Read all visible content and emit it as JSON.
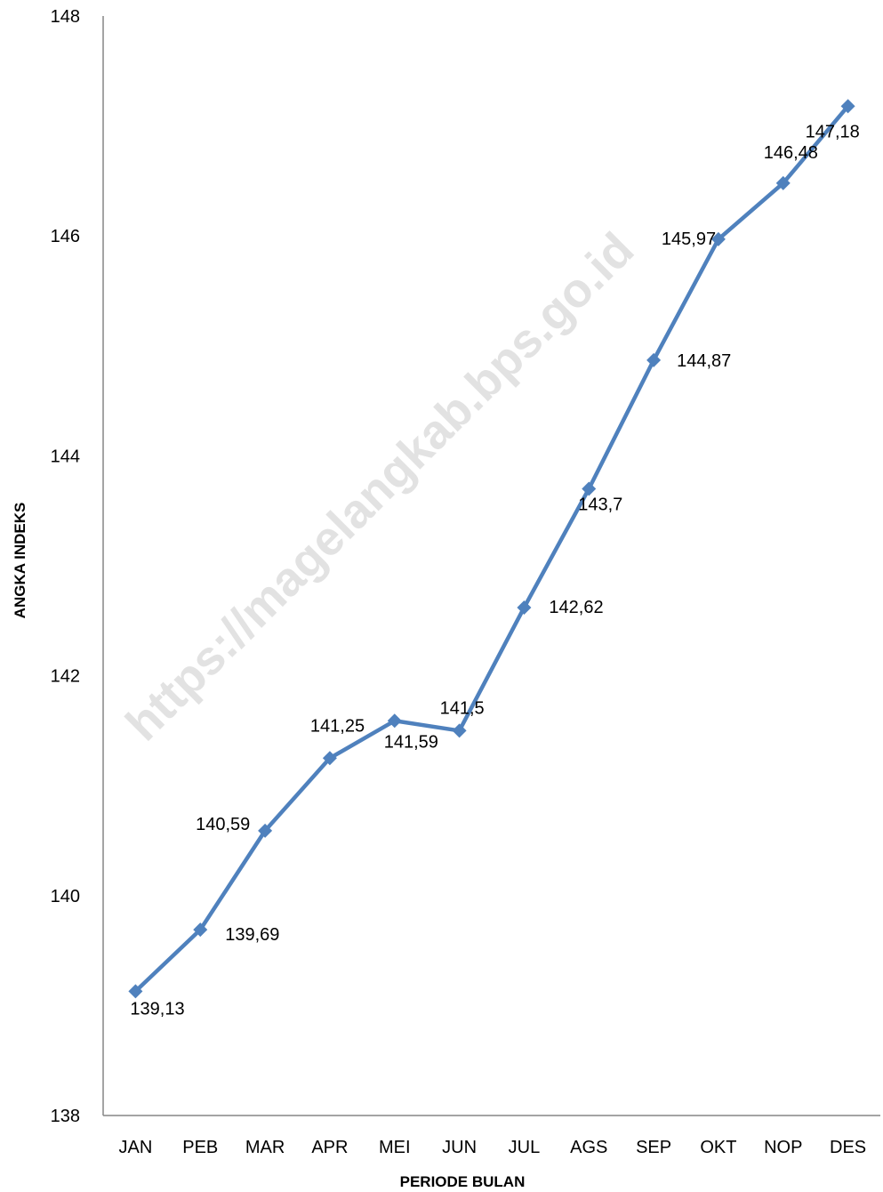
{
  "watermark": "https://magelangkab.bps.go.id",
  "chart_data": {
    "type": "line",
    "categories": [
      "JAN",
      "PEB",
      "MAR",
      "APR",
      "MEI",
      "JUN",
      "JUL",
      "AGS",
      "SEP",
      "OKT",
      "NOP",
      "DES"
    ],
    "series": [
      {
        "values": [
          139.13,
          139.69,
          140.59,
          141.25,
          141.59,
          141.5,
          142.62,
          143.7,
          144.87,
          145.97,
          146.48,
          147.18
        ],
        "labels": [
          "139,13",
          "139,69",
          "140,59",
          "141,25",
          "141,59",
          "141,5",
          "142,62",
          "143,7",
          "144,87",
          "145,97",
          "146,48",
          "147,18"
        ],
        "color": "#4F81BD",
        "marker": "diamond"
      }
    ],
    "xlabel": "PERIODE BULAN",
    "ylabel": "ANGKA INDEKS",
    "ylim": [
      138,
      148
    ],
    "yticks": [
      "138",
      "140",
      "142",
      "144",
      "146",
      "148"
    ],
    "grid": false,
    "legend": "none"
  }
}
